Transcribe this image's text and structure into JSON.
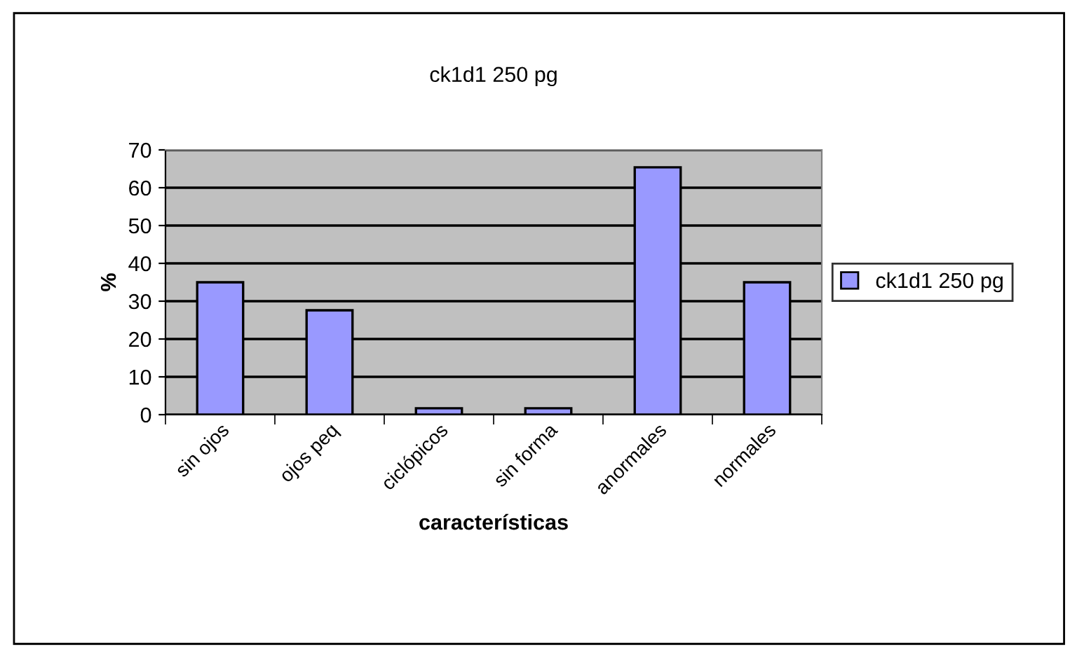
{
  "chart_data": {
    "type": "bar",
    "title": "ck1d1 250 pg",
    "xlabel": "características",
    "ylabel": "%",
    "categories": [
      "sin ojos",
      "ojos peq",
      "ciclópicos",
      "sin forma",
      "anormales",
      "normales"
    ],
    "series": [
      {
        "name": "ck1d1 250 pg",
        "color": "#9999ff",
        "values": [
          35,
          27.6,
          1.7,
          1.7,
          65.4,
          35
        ]
      }
    ],
    "ylim": [
      0,
      70
    ],
    "yticks": [
      0,
      10,
      20,
      30,
      40,
      50,
      60,
      70
    ],
    "grid": "y",
    "legend": "right"
  }
}
